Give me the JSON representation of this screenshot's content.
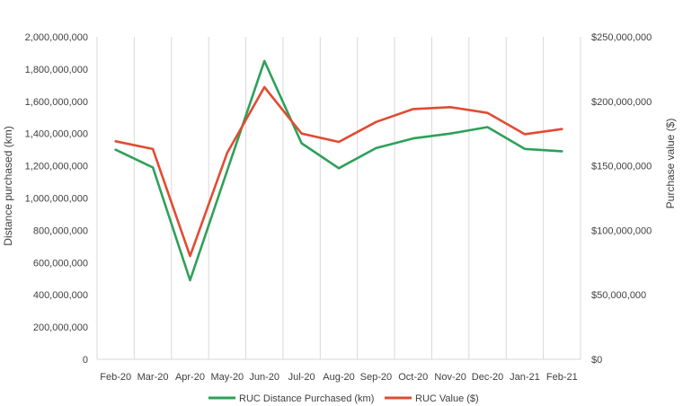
{
  "chart_data": {
    "type": "line",
    "categories": [
      "Feb-20",
      "Mar-20",
      "Apr-20",
      "May-20",
      "Jun-20",
      "Jul-20",
      "Aug-20",
      "Sep-20",
      "Oct-20",
      "Nov-20",
      "Dec-20",
      "Jan-21",
      "Feb-21"
    ],
    "ylabel": "Distance purchased (km)",
    "y2label": "Purchase value ($)",
    "ylim": [
      0,
      2000000000
    ],
    "y2lim": [
      0,
      250000000
    ],
    "y_ticks": [
      "0",
      "200,000,000",
      "400,000,000",
      "600,000,000",
      "800,000,000",
      "1,000,000,000",
      "1,200,000,000",
      "1,400,000,000",
      "1,600,000,000",
      "1,800,000,000",
      "2,000,000,000"
    ],
    "y2_ticks": [
      "$0",
      "$50,000,000",
      "$100,000,000",
      "$150,000,000",
      "$200,000,000",
      "$250,000,000"
    ],
    "grid": "vertical",
    "legend_position": "bottom",
    "series": [
      {
        "name": "RUC Distance Purchased (km)",
        "axis": "left",
        "color": "#2ea05a",
        "values": [
          1300000000,
          1190000000,
          490000000,
          1170000000,
          1850000000,
          1340000000,
          1185000000,
          1310000000,
          1370000000,
          1400000000,
          1440000000,
          1305000000,
          1290000000
        ]
      },
      {
        "name": "RUC Value ($)",
        "axis": "right",
        "color": "#e04c33",
        "values": [
          169000000,
          163000000,
          80000000,
          160000000,
          211000000,
          175000000,
          168500000,
          184000000,
          194000000,
          195500000,
          191000000,
          174500000,
          178500000
        ]
      }
    ]
  }
}
